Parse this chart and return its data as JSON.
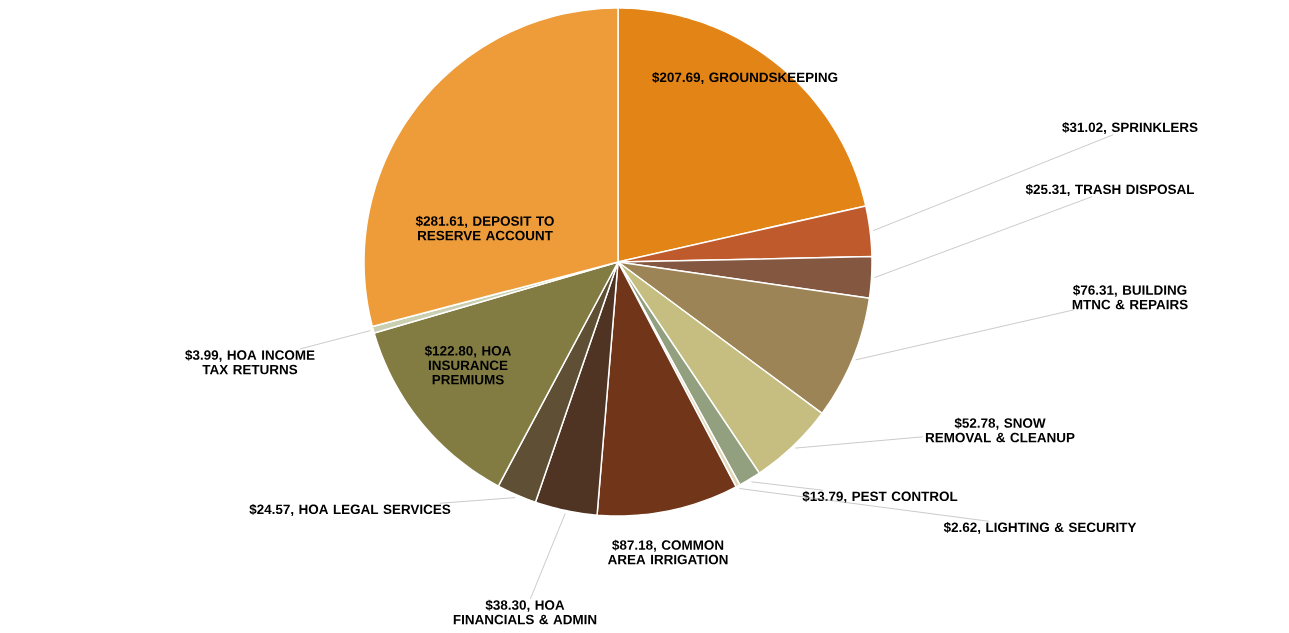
{
  "chart_data": {
    "type": "pie",
    "categories": [
      "$207.69, GROUNDSKEEPING",
      "$31.02, SPRINKLERS",
      "$25.31, TRASH DISPOSAL",
      "$76.31, BUILDING MTNC & REPAIRS",
      "$52.78, SNOW REMOVAL & CLEANUP",
      "$13.79, PEST CONTROL",
      "$2.62, LIGHTING & SECURITY",
      "$87.18, COMMON AREA IRRIGATION",
      "$38.30, HOA FINANCIALS & ADMIN",
      "$24.57, HOA LEGAL SERVICES",
      "$122.80, HOA INSURANCE PREMIUMS",
      "$3.99, HOA INCOME TAX RETURNS",
      "$281.61, DEPOSIT TO RESERVE ACCOUNT"
    ],
    "values": [
      207.69,
      31.02,
      25.31,
      76.31,
      52.78,
      13.79,
      2.62,
      87.18,
      38.3,
      24.57,
      122.8,
      3.99,
      281.61
    ],
    "colors": [
      "#e38416",
      "#bf5a2c",
      "#845840",
      "#9c8456",
      "#c6be80",
      "#92a080",
      "#e0d8b8",
      "#713519",
      "#4f3424",
      "#5e4f35",
      "#827c43",
      "#c9cfb0",
      "#ee9c3a"
    ]
  }
}
